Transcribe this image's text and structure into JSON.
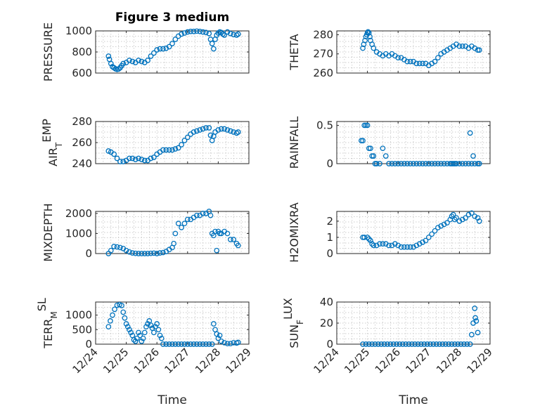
{
  "figure": {
    "title": "Figure 3 medium",
    "marker_color": "#0072bd",
    "axis_color": "#262626"
  },
  "chart_data": [
    {
      "type": "scatter",
      "ylabel": "PRESSURE",
      "ylim": [
        600,
        1000
      ],
      "yticks": [
        600,
        800,
        1000
      ],
      "xlim": [
        0,
        5
      ],
      "xticks": [
        0,
        1,
        2,
        3,
        4,
        5
      ],
      "xticklabels": [
        "12/24",
        "12/25",
        "12/26",
        "12/27",
        "12/28",
        "12/29"
      ],
      "xlabel": "",
      "title": "Figure 3 medium",
      "marker": "circle",
      "x": [
        0.42,
        0.45,
        0.5,
        0.55,
        0.6,
        0.65,
        0.7,
        0.75,
        0.8,
        0.85,
        0.9,
        1.0,
        1.1,
        1.2,
        1.3,
        1.4,
        1.5,
        1.6,
        1.7,
        1.8,
        1.9,
        2.0,
        2.1,
        2.2,
        2.3,
        2.4,
        2.5,
        2.6,
        2.7,
        2.8,
        2.9,
        3.0,
        3.1,
        3.2,
        3.3,
        3.4,
        3.5,
        3.6,
        3.7,
        3.75,
        3.8,
        3.85,
        3.9,
        3.95,
        4.0,
        4.05,
        4.1,
        4.15,
        4.2,
        4.3,
        4.4,
        4.5,
        4.6,
        4.65
      ],
      "y": [
        760,
        730,
        690,
        660,
        650,
        640,
        635,
        638,
        650,
        670,
        690,
        700,
        720,
        710,
        700,
        720,
        710,
        700,
        720,
        760,
        790,
        820,
        830,
        830,
        835,
        850,
        880,
        920,
        950,
        970,
        980,
        990,
        995,
        995,
        998,
        995,
        990,
        985,
        975,
        920,
        880,
        830,
        920,
        960,
        980,
        990,
        985,
        970,
        960,
        990,
        975,
        965,
        960,
        970
      ]
    },
    {
      "type": "scatter",
      "ylabel": "THETA",
      "ylim": [
        260,
        282
      ],
      "yticks": [
        260,
        270,
        280
      ],
      "xlim": [
        0,
        5
      ],
      "xticks": [
        0,
        1,
        2,
        3,
        4,
        5
      ],
      "xticklabels": [
        "12/24",
        "12/25",
        "12/26",
        "12/27",
        "12/28",
        "12/29"
      ],
      "xlabel": "",
      "marker": "circle",
      "x": [
        0.85,
        0.88,
        0.92,
        0.95,
        0.98,
        1.0,
        1.02,
        1.05,
        1.08,
        1.1,
        1.15,
        1.2,
        1.3,
        1.4,
        1.5,
        1.6,
        1.7,
        1.8,
        1.9,
        2.0,
        2.1,
        2.2,
        2.3,
        2.4,
        2.5,
        2.6,
        2.7,
        2.8,
        2.9,
        3.0,
        3.1,
        3.2,
        3.3,
        3.4,
        3.5,
        3.6,
        3.7,
        3.8,
        3.9,
        4.0,
        4.1,
        4.2,
        4.3,
        4.4,
        4.5,
        4.6,
        4.65
      ],
      "y": [
        273,
        275,
        277,
        279,
        280,
        281,
        281.5,
        281,
        279,
        277,
        275,
        273,
        271,
        270,
        269,
        270,
        269,
        270,
        269,
        268,
        268,
        267,
        266,
        266,
        266,
        265,
        265,
        265,
        265,
        264,
        265,
        266,
        268,
        270,
        271,
        272,
        273,
        274,
        275,
        274,
        274,
        274,
        273,
        274,
        273,
        272,
        272
      ]
    },
    {
      "type": "scatter",
      "ylabel": "AIR_TEMP",
      "ylim": [
        240,
        280
      ],
      "yticks": [
        240,
        260,
        280
      ],
      "xlim": [
        0,
        5
      ],
      "xticks": [
        0,
        1,
        2,
        3,
        4,
        5
      ],
      "xticklabels": [
        "12/24",
        "12/25",
        "12/26",
        "12/27",
        "12/28",
        "12/29"
      ],
      "xlabel": "",
      "marker": "circle",
      "x": [
        0.42,
        0.5,
        0.6,
        0.7,
        0.8,
        0.9,
        1.0,
        1.1,
        1.2,
        1.3,
        1.4,
        1.5,
        1.6,
        1.7,
        1.8,
        1.9,
        2.0,
        2.1,
        2.2,
        2.3,
        2.4,
        2.5,
        2.6,
        2.7,
        2.8,
        2.9,
        3.0,
        3.1,
        3.2,
        3.3,
        3.4,
        3.5,
        3.6,
        3.7,
        3.75,
        3.8,
        3.85,
        3.9,
        4.0,
        4.1,
        4.2,
        4.3,
        4.4,
        4.5,
        4.6,
        4.65
      ],
      "y": [
        252,
        251,
        249,
        245,
        242,
        242,
        243,
        245,
        245,
        244,
        245,
        244,
        243,
        243,
        245,
        246,
        249,
        251,
        253,
        253,
        253,
        253,
        254,
        255,
        258,
        262,
        265,
        268,
        270,
        271,
        272,
        273,
        274,
        274,
        267,
        262,
        266,
        270,
        272,
        273,
        273,
        272,
        271,
        270,
        269,
        270
      ]
    },
    {
      "type": "scatter",
      "ylabel": "RAINFALL",
      "ylim": [
        0,
        0.55
      ],
      "yticks": [
        0,
        0.5
      ],
      "xlim": [
        0,
        5
      ],
      "xticks": [
        0,
        1,
        2,
        3,
        4,
        5
      ],
      "xticklabels": [
        "12/24",
        "12/25",
        "12/26",
        "12/27",
        "12/28",
        "12/29"
      ],
      "xlabel": "",
      "marker": "circle",
      "x": [
        0.8,
        0.85,
        0.9,
        0.95,
        1.0,
        1.05,
        1.1,
        1.15,
        1.2,
        1.25,
        1.3,
        1.4,
        1.5,
        1.6,
        1.7,
        1.8,
        1.9,
        2.0,
        2.1,
        2.2,
        2.3,
        2.4,
        2.5,
        2.6,
        2.7,
        2.8,
        2.9,
        3.0,
        3.1,
        3.2,
        3.3,
        3.4,
        3.5,
        3.6,
        3.7,
        3.75,
        3.8,
        3.85,
        3.9,
        4.0,
        4.1,
        4.2,
        4.3,
        4.4,
        4.5,
        4.6,
        4.65,
        4.35,
        4.45
      ],
      "y": [
        0.3,
        0.3,
        0.5,
        0.5,
        0.5,
        0.2,
        0.2,
        0.1,
        0.1,
        0,
        0,
        0,
        0.2,
        0.1,
        0,
        0,
        0,
        0,
        0,
        0,
        0,
        0,
        0,
        0,
        0,
        0,
        0,
        0,
        0,
        0,
        0,
        0,
        0,
        0,
        0,
        0,
        0,
        0,
        0,
        0,
        0,
        0,
        0,
        0,
        0,
        0,
        0,
        0.4,
        0.1
      ]
    },
    {
      "type": "scatter",
      "ylabel": "MIXDEPTH",
      "ylim": [
        0,
        2100
      ],
      "yticks": [
        0,
        1000,
        2000
      ],
      "xlim": [
        0,
        5
      ],
      "xticks": [
        0,
        1,
        2,
        3,
        4,
        5
      ],
      "xticklabels": [
        "12/24",
        "12/25",
        "12/26",
        "12/27",
        "12/28",
        "12/29"
      ],
      "xlabel": "",
      "marker": "circle",
      "x": [
        0.42,
        0.5,
        0.6,
        0.7,
        0.8,
        0.9,
        1.0,
        1.1,
        1.2,
        1.3,
        1.4,
        1.5,
        1.6,
        1.7,
        1.8,
        1.9,
        2.0,
        2.1,
        2.2,
        2.3,
        2.4,
        2.5,
        2.55,
        2.6,
        2.7,
        2.8,
        2.9,
        3.0,
        3.1,
        3.2,
        3.3,
        3.4,
        3.5,
        3.6,
        3.7,
        3.75,
        3.8,
        3.85,
        3.9,
        3.95,
        4.0,
        4.05,
        4.1,
        4.2,
        4.3,
        4.4,
        4.5,
        4.6,
        4.65
      ],
      "y": [
        0,
        150,
        350,
        330,
        300,
        250,
        150,
        80,
        30,
        10,
        0,
        0,
        0,
        0,
        10,
        20,
        0,
        30,
        50,
        100,
        200,
        300,
        500,
        1000,
        1500,
        1300,
        1500,
        1700,
        1700,
        1800,
        1900,
        1900,
        2000,
        2000,
        2100,
        1900,
        1000,
        900,
        1100,
        150,
        1100,
        1000,
        1000,
        1100,
        1000,
        700,
        700,
        500,
        400
      ]
    },
    {
      "type": "scatter",
      "ylabel": "H2OMIXRA",
      "ylim": [
        0,
        2.6
      ],
      "yticks": [
        0,
        1,
        2
      ],
      "xlim": [
        0,
        5
      ],
      "xticks": [
        0,
        1,
        2,
        3,
        4,
        5
      ],
      "xticklabels": [
        "12/24",
        "12/25",
        "12/26",
        "12/27",
        "12/28",
        "12/29"
      ],
      "xlabel": "",
      "marker": "circle",
      "x": [
        0.85,
        0.9,
        1.0,
        1.05,
        1.1,
        1.15,
        1.2,
        1.3,
        1.4,
        1.5,
        1.6,
        1.7,
        1.8,
        1.9,
        2.0,
        2.1,
        2.2,
        2.3,
        2.4,
        2.5,
        2.6,
        2.7,
        2.8,
        2.9,
        3.0,
        3.1,
        3.2,
        3.3,
        3.4,
        3.5,
        3.6,
        3.7,
        3.75,
        3.8,
        3.85,
        3.9,
        4.0,
        4.1,
        4.2,
        4.3,
        4.4,
        4.5,
        4.6,
        4.65
      ],
      "y": [
        1.0,
        1.0,
        1.0,
        0.9,
        0.8,
        0.6,
        0.5,
        0.5,
        0.6,
        0.6,
        0.6,
        0.5,
        0.5,
        0.6,
        0.5,
        0.4,
        0.4,
        0.4,
        0.4,
        0.4,
        0.5,
        0.6,
        0.7,
        0.8,
        1.0,
        1.2,
        1.4,
        1.6,
        1.7,
        1.8,
        1.9,
        2.1,
        2.3,
        2.4,
        2.1,
        2.2,
        2.0,
        2.1,
        2.2,
        2.4,
        2.5,
        2.3,
        2.2,
        2.0
      ]
    },
    {
      "type": "scatter",
      "ylabel": "TERR_MSL",
      "ylim": [
        0,
        1450
      ],
      "yticks": [
        0,
        500,
        1000
      ],
      "xlim": [
        0,
        5
      ],
      "xticks": [
        0,
        1,
        2,
        3,
        4,
        5
      ],
      "xticklabels": [
        "12/24",
        "12/25",
        "12/26",
        "12/27",
        "12/28",
        "12/29"
      ],
      "xlabel": "",
      "marker": "circle",
      "x": [
        0.42,
        0.48,
        0.55,
        0.62,
        0.7,
        0.78,
        0.85,
        0.9,
        0.95,
        1.0,
        1.05,
        1.1,
        1.15,
        1.2,
        1.25,
        1.3,
        1.35,
        1.4,
        1.45,
        1.5,
        1.55,
        1.6,
        1.65,
        1.7,
        1.75,
        1.8,
        1.85,
        1.9,
        1.95,
        2.0,
        2.05,
        2.1,
        2.15,
        2.2,
        2.3,
        2.4,
        2.5,
        2.6,
        2.7,
        2.8,
        2.9,
        3.0,
        3.1,
        3.2,
        3.3,
        3.4,
        3.5,
        3.6,
        3.7,
        3.8,
        3.85,
        3.9,
        3.95,
        4.0,
        4.05,
        4.1,
        4.2,
        4.3,
        4.4,
        4.5,
        4.6,
        4.65
      ],
      "y": [
        600,
        800,
        1000,
        1200,
        1340,
        1360,
        1330,
        1100,
        900,
        700,
        600,
        500,
        400,
        300,
        150,
        100,
        200,
        400,
        300,
        100,
        200,
        400,
        600,
        700,
        800,
        650,
        550,
        400,
        600,
        700,
        500,
        300,
        200,
        0,
        0,
        0,
        0,
        0,
        0,
        0,
        0,
        0,
        0,
        0,
        0,
        0,
        0,
        0,
        0,
        0,
        700,
        500,
        350,
        200,
        300,
        100,
        50,
        20,
        20,
        50,
        40,
        60
      ]
    },
    {
      "type": "scatter",
      "ylabel": "SUN_FLUX",
      "ylim": [
        0,
        40
      ],
      "yticks": [
        0,
        20,
        40
      ],
      "xlim": [
        0,
        5
      ],
      "xticks": [
        0,
        1,
        2,
        3,
        4,
        5
      ],
      "xticklabels": [
        "12/24",
        "12/25",
        "12/26",
        "12/27",
        "12/28",
        "12/29"
      ],
      "xlabel": "",
      "marker": "circle",
      "x": [
        0.85,
        0.95,
        1.05,
        1.15,
        1.25,
        1.35,
        1.45,
        1.55,
        1.65,
        1.75,
        1.85,
        1.95,
        2.05,
        2.15,
        2.25,
        2.35,
        2.45,
        2.55,
        2.65,
        2.75,
        2.85,
        2.95,
        3.05,
        3.15,
        3.25,
        3.35,
        3.45,
        3.55,
        3.65,
        3.75,
        3.85,
        3.95,
        4.05,
        4.15,
        4.25,
        4.35,
        4.4,
        4.45,
        4.5,
        4.52,
        4.55,
        4.6
      ],
      "y": [
        0,
        0,
        0,
        0,
        0,
        0,
        0,
        0,
        0,
        0,
        0,
        0,
        0,
        0,
        0,
        0,
        0,
        0,
        0,
        0,
        0,
        0,
        0,
        0,
        0,
        0,
        0,
        0,
        0,
        0,
        0,
        0,
        0,
        0,
        0,
        0,
        9,
        20,
        34,
        25,
        22,
        11
      ]
    }
  ],
  "bottom_row": {
    "xlabel_left": "Time",
    "xlabel_right": "Time",
    "xticklabels": [
      "12/24",
      "12/25",
      "12/26",
      "12/27",
      "12/28",
      "12/29"
    ]
  }
}
